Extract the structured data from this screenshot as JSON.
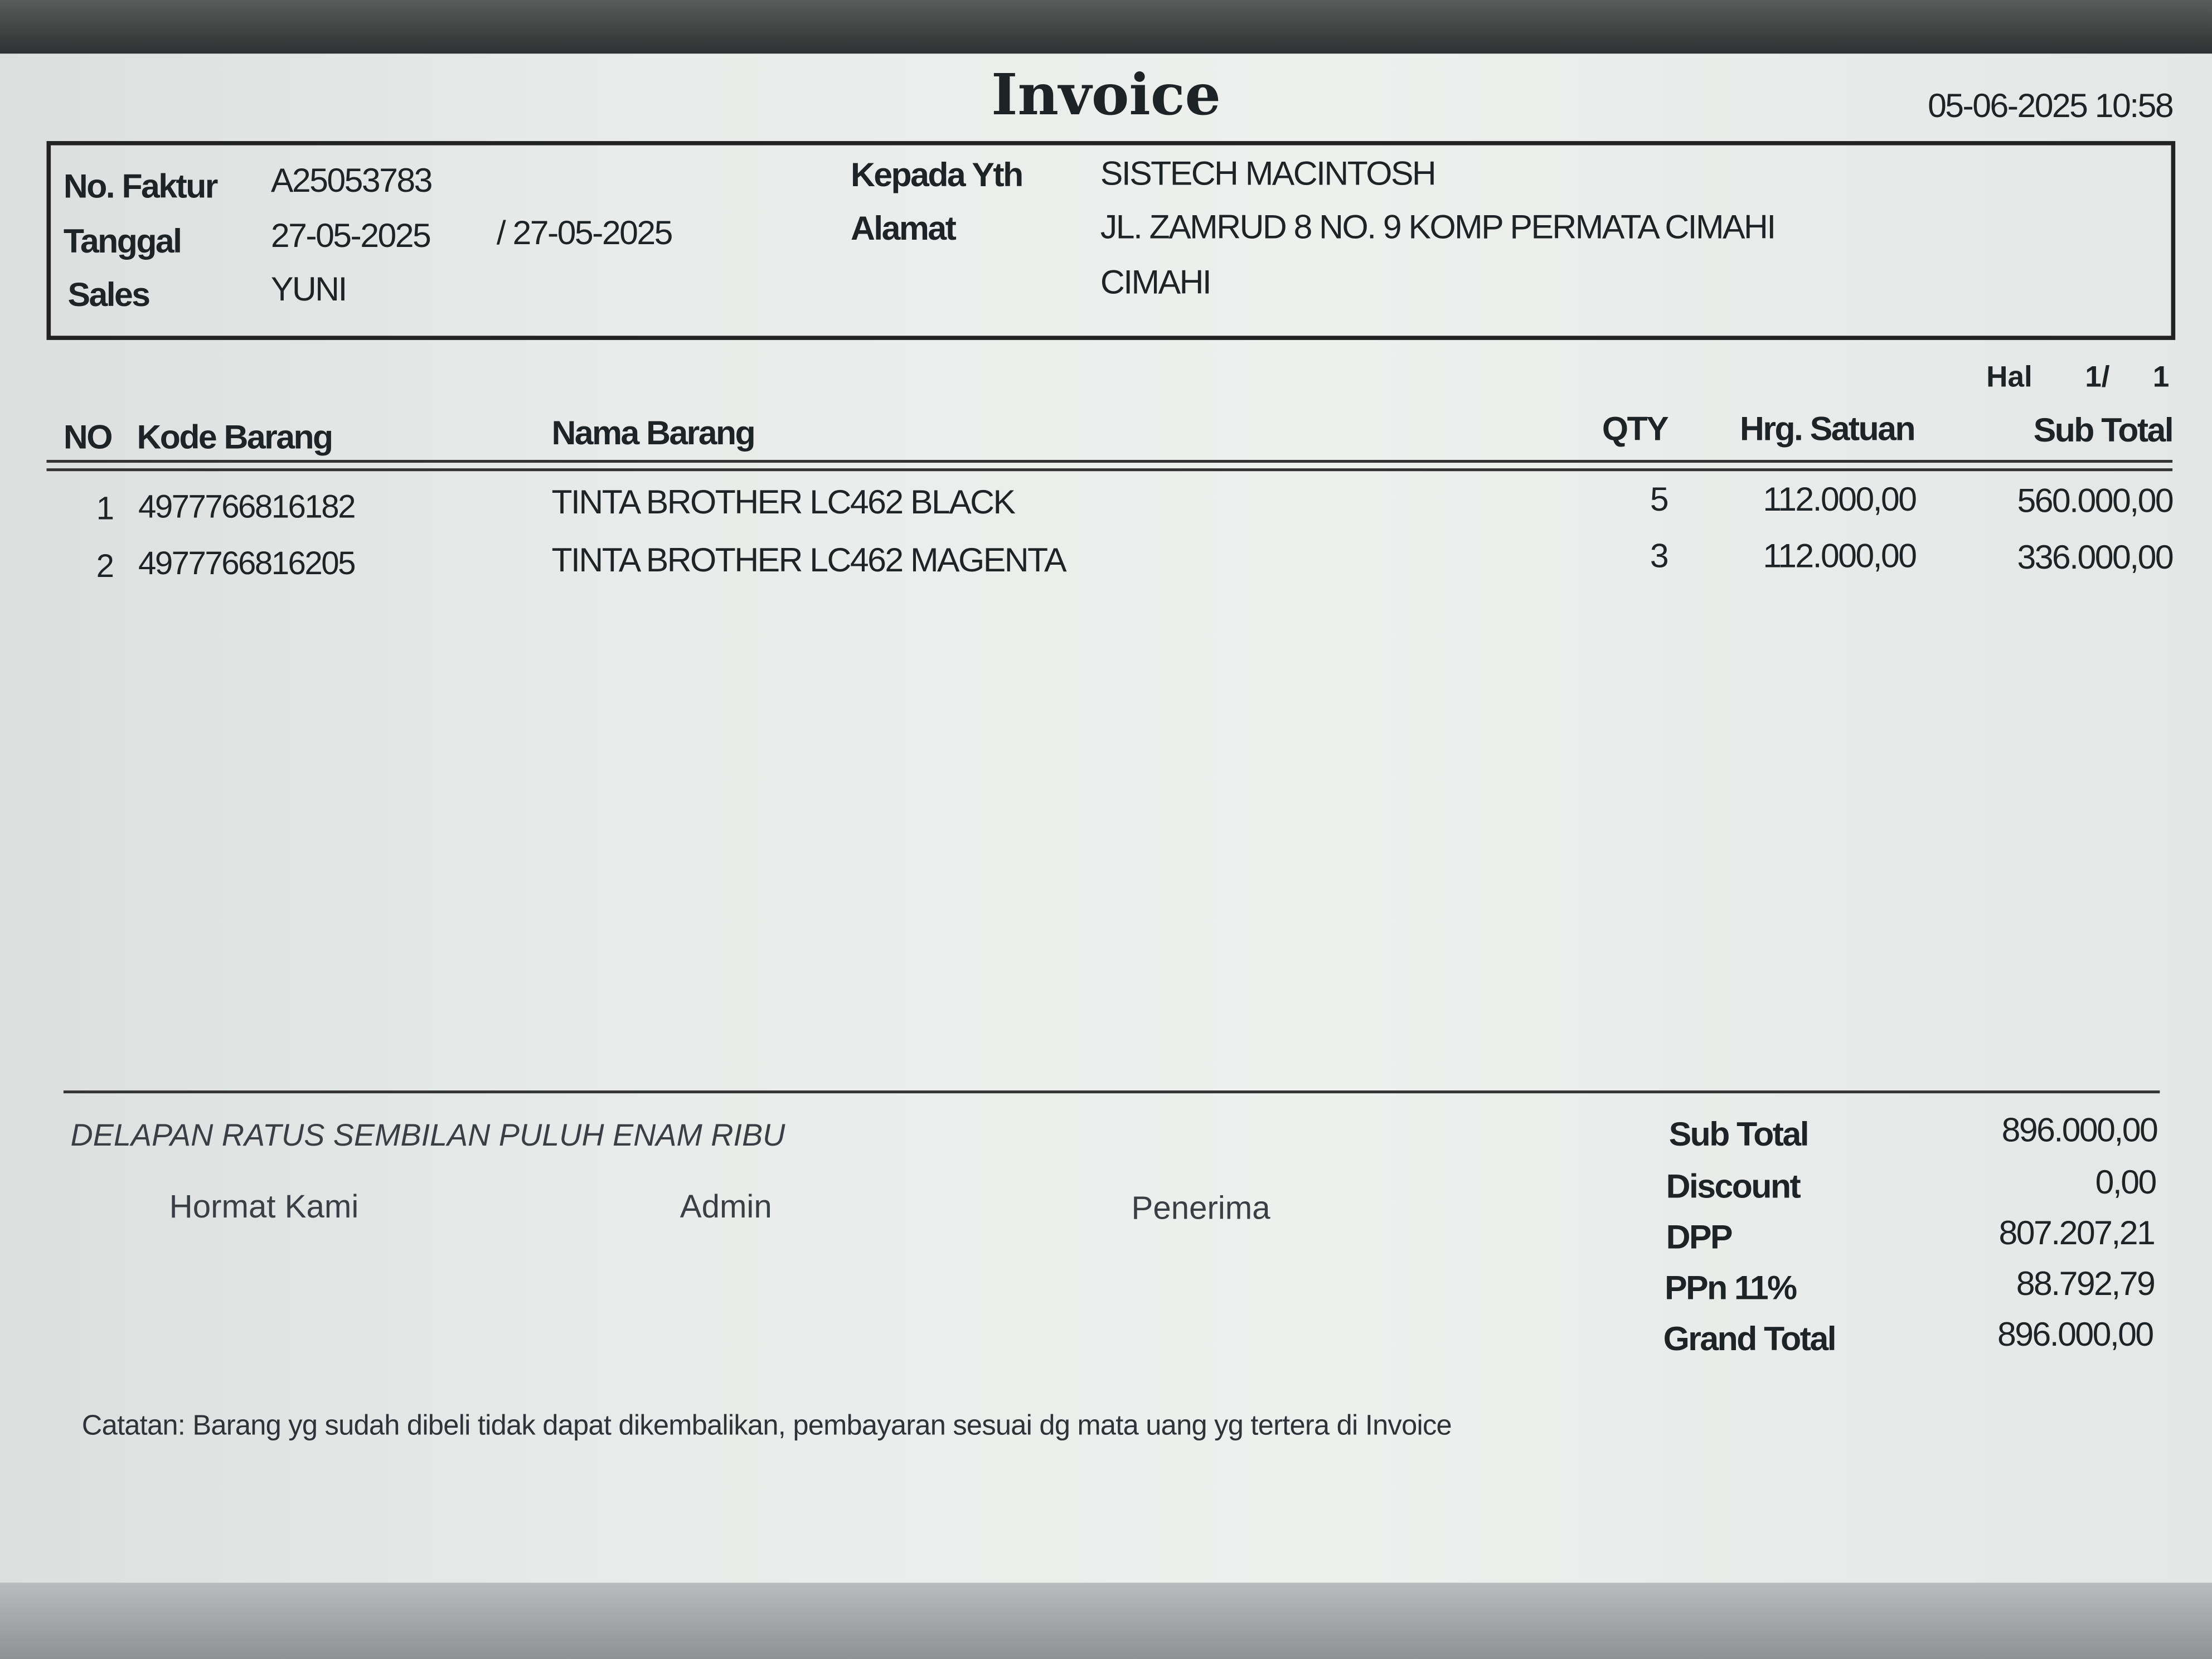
{
  "title": "Invoice",
  "printed_at": "05-06-2025 10:58",
  "header": {
    "no_faktur_label": "No. Faktur",
    "no_faktur": "A25053783",
    "tanggal_label": "Tanggal",
    "tanggal": "27-05-2025",
    "tanggal_due": "/ 27-05-2025",
    "sales_label": "Sales",
    "sales": "YUNI",
    "kepada_label": "Kepada Yth",
    "kepada": "SISTECH MACINTOSH",
    "alamat_label": "Alamat",
    "alamat_line1": "JL. ZAMRUD 8 NO. 9 KOMP PERMATA CIMAHI",
    "alamat_line2": "CIMAHI"
  },
  "page": {
    "label": "Hal",
    "current": "1/",
    "total": "1"
  },
  "table": {
    "columns": [
      "NO",
      "Kode Barang",
      "Nama Barang",
      "QTY",
      "Hrg. Satuan",
      "Sub Total"
    ],
    "rows": [
      {
        "no": "1",
        "kode": "4977766816182",
        "nama": "TINTA BROTHER LC462 BLACK",
        "qty": "5",
        "harga": "112.000,00",
        "subtotal": "560.000,00"
      },
      {
        "no": "2",
        "kode": "4977766816205",
        "nama": "TINTA BROTHER LC462 MAGENTA",
        "qty": "3",
        "harga": "112.000,00",
        "subtotal": "336.000,00"
      }
    ]
  },
  "terbilang": "DELAPAN RATUS SEMBILAN PULUH ENAM RIBU",
  "signatures": [
    "Hormat Kami",
    "Admin",
    "Penerima"
  ],
  "totals": [
    {
      "label": "Sub Total",
      "value": "896.000,00"
    },
    {
      "label": "Discount",
      "value": "0,00"
    },
    {
      "label": "DPP",
      "value": "807.207,21"
    },
    {
      "label": "PPn 11%",
      "value": "88.792,79"
    },
    {
      "label": "Grand Total",
      "value": "896.000,00"
    }
  ],
  "note": "Catatan: Barang yg sudah dibeli tidak dapat dikembalikan, pembayaran sesuai dg mata uang yg tertera di Invoice"
}
